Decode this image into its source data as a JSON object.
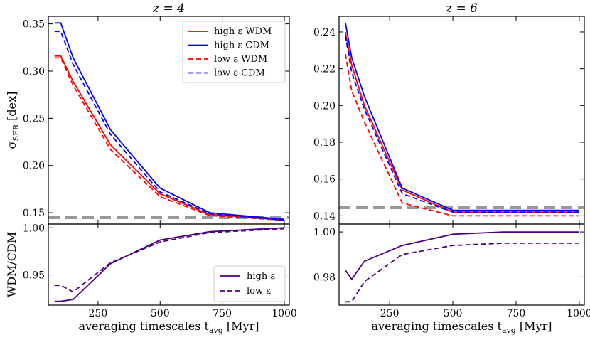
{
  "chart_data": [
    {
      "type": "line",
      "panel": "top-left",
      "title": "z = 4",
      "xlabel": "",
      "ylabel": "σ_SFR [dex]",
      "xlim": [
        50,
        1020
      ],
      "ylim": [
        0.138,
        0.358
      ],
      "xticks": [
        250,
        500,
        750,
        1000
      ],
      "yticks": [
        0.15,
        0.2,
        0.25,
        0.3,
        0.35
      ],
      "ytick_labels": [
        "0.15",
        "0.20",
        "0.25",
        "0.30",
        "0.35"
      ],
      "legend_position": "top-right",
      "reference_line": {
        "y": 0.145,
        "style": "dashed",
        "color": "#999999"
      },
      "series": [
        {
          "name": "high ε WDM",
          "color": "#ff0000",
          "dash": "solid",
          "x": [
            75,
            100,
            150,
            300,
            500,
            700,
            1000
          ],
          "y": [
            0.316,
            0.316,
            0.289,
            0.222,
            0.17,
            0.148,
            0.143
          ]
        },
        {
          "name": "high ε CDM",
          "color": "#0000ff",
          "dash": "solid",
          "x": [
            75,
            100,
            150,
            300,
            500,
            700,
            1000
          ],
          "y": [
            0.351,
            0.351,
            0.314,
            0.238,
            0.176,
            0.15,
            0.143
          ]
        },
        {
          "name": "low ε WDM",
          "color": "#ff0000",
          "dash": "dashed",
          "x": [
            75,
            100,
            150,
            300,
            500,
            700,
            1000
          ],
          "y": [
            0.314,
            0.314,
            0.285,
            0.217,
            0.167,
            0.147,
            0.142
          ]
        },
        {
          "name": "low ε CDM",
          "color": "#0000ff",
          "dash": "dashed",
          "x": [
            75,
            100,
            150,
            300,
            500,
            700,
            1000
          ],
          "y": [
            0.342,
            0.342,
            0.307,
            0.233,
            0.172,
            0.149,
            0.142
          ]
        }
      ]
    },
    {
      "type": "line",
      "panel": "top-right",
      "title": "z = 6",
      "xlabel": "",
      "ylabel": "",
      "xlim": [
        50,
        1020
      ],
      "ylim": [
        0.1355,
        0.2485
      ],
      "xticks": [
        250,
        500,
        750,
        1000
      ],
      "yticks": [
        0.14,
        0.16,
        0.18,
        0.2,
        0.22,
        0.24
      ],
      "ytick_labels": [
        "0.14",
        "0.16",
        "0.18",
        "0.20",
        "0.22",
        "0.24"
      ],
      "reference_line": {
        "y": 0.1445,
        "style": "dashed",
        "color": "#999999"
      },
      "series": [
        {
          "name": "high ε WDM",
          "color": "#ff0000",
          "dash": "solid",
          "x": [
            75,
            100,
            150,
            300,
            500,
            700,
            1000
          ],
          "y": [
            0.24,
            0.222,
            0.2,
            0.154,
            0.142,
            0.142,
            0.142
          ]
        },
        {
          "name": "high ε CDM",
          "color": "#0000ff",
          "dash": "solid",
          "x": [
            75,
            100,
            150,
            300,
            500,
            700,
            1000
          ],
          "y": [
            0.245,
            0.226,
            0.205,
            0.155,
            0.143,
            0.143,
            0.143
          ]
        },
        {
          "name": "low ε WDM",
          "color": "#ff0000",
          "dash": "dashed",
          "x": [
            75,
            100,
            150,
            300,
            500,
            700,
            1000
          ],
          "y": [
            0.228,
            0.208,
            0.191,
            0.147,
            0.14,
            0.14,
            0.14
          ]
        },
        {
          "name": "low ε CDM",
          "color": "#0000ff",
          "dash": "dashed",
          "x": [
            75,
            100,
            150,
            300,
            500,
            700,
            1000
          ],
          "y": [
            0.238,
            0.218,
            0.198,
            0.152,
            0.142,
            0.142,
            0.142
          ]
        }
      ]
    },
    {
      "type": "line",
      "panel": "bottom-left",
      "title": "",
      "xlabel": "averaging timescales t_avg [Myr]",
      "ylabel": "WDM/CDM",
      "xlim": [
        50,
        1020
      ],
      "ylim": [
        0.918,
        1.004
      ],
      "xticks": [
        250,
        500,
        750,
        1000
      ],
      "yticks": [
        0.95,
        1.0
      ],
      "ytick_labels": [
        "0.95",
        "1.00"
      ],
      "legend_position": "bottom-right",
      "series": [
        {
          "name": "high ε",
          "color": "#4b0082",
          "dash": "solid",
          "x": [
            75,
            100,
            150,
            300,
            500,
            700,
            1000
          ],
          "y": [
            0.922,
            0.922,
            0.924,
            0.962,
            0.987,
            0.996,
            1.0
          ]
        },
        {
          "name": "low ε",
          "color": "#4b0082",
          "dash": "dashed",
          "x": [
            75,
            100,
            150,
            300,
            500,
            700,
            1000
          ],
          "y": [
            0.939,
            0.939,
            0.932,
            0.963,
            0.985,
            0.995,
            0.999
          ]
        }
      ]
    },
    {
      "type": "line",
      "panel": "bottom-right",
      "title": "",
      "xlabel": "averaging timescales t_avg [Myr]",
      "ylabel": "",
      "xlim": [
        50,
        1020
      ],
      "ylim": [
        0.9675,
        1.0035
      ],
      "xticks": [
        250,
        500,
        750,
        1000
      ],
      "yticks": [
        0.98,
        1.0
      ],
      "ytick_labels": [
        "0.98",
        "1.00"
      ],
      "series": [
        {
          "name": "high ε",
          "color": "#4b0082",
          "dash": "solid",
          "x": [
            75,
            100,
            150,
            300,
            500,
            700,
            1000
          ],
          "y": [
            0.983,
            0.979,
            0.987,
            0.994,
            0.999,
            1.0,
            1.0
          ]
        },
        {
          "name": "low ε",
          "color": "#4b0082",
          "dash": "dashed",
          "x": [
            75,
            100,
            150,
            300,
            500,
            700,
            1000
          ],
          "y": [
            0.969,
            0.969,
            0.978,
            0.99,
            0.994,
            0.995,
            0.995
          ]
        }
      ]
    }
  ]
}
